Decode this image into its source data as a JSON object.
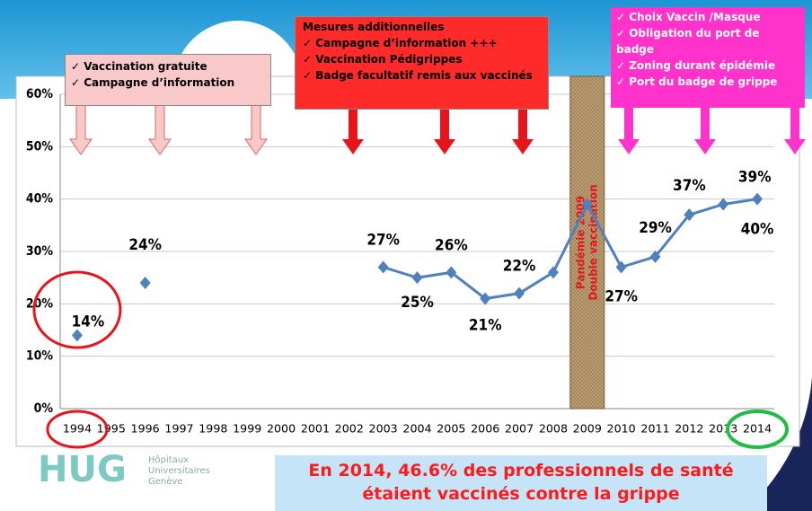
{
  "chart_data": {
    "type": "line",
    "categories": [
      "1994",
      "1995",
      "1996",
      "1997",
      "1998",
      "1999",
      "2000",
      "2001",
      "2002",
      "2003",
      "2004",
      "2005",
      "2006",
      "2007",
      "2008",
      "2009",
      "2010",
      "2011",
      "2012",
      "2013",
      "2014"
    ],
    "series": [
      {
        "color": "#4f81bd",
        "values": [
          14,
          null,
          24,
          null,
          null,
          null,
          null,
          null,
          null,
          27,
          25,
          26,
          21,
          22,
          26,
          39,
          27,
          29,
          37,
          39,
          40
        ],
        "value_labels": [
          "14%",
          null,
          "24%",
          null,
          null,
          null,
          null,
          null,
          null,
          "27%",
          "25%",
          "26%",
          "21%",
          "22%",
          null,
          null,
          "27%",
          "29%",
          "37%",
          "39%",
          "40%"
        ]
      }
    ],
    "ylim": [
      0,
      60
    ],
    "yticks": [
      {
        "value": 0,
        "label": "0%"
      },
      {
        "value": 10,
        "label": "10%"
      },
      {
        "value": 20,
        "label": "20%"
      },
      {
        "value": 30,
        "label": "30%"
      },
      {
        "value": 40,
        "label": "40%"
      },
      {
        "value": 50,
        "label": "50%"
      },
      {
        "value": 60,
        "label": "60%"
      }
    ],
    "grid": true,
    "annotations": {
      "period_1": {
        "items": [
          "Vaccination gratuite",
          "Campagne d’information"
        ]
      },
      "period_2": {
        "title": "Mesures additionnelles",
        "items": [
          "Campagne d’information +++",
          "Vaccination Pédigrippes",
          "Badge facultatif remis aux vaccinés"
        ]
      },
      "period_3": {
        "items": [
          "Choix Vaccin /Masque",
          "Obligation du port de badge",
          "Zoning durant épidémie",
          "Port du badge de grippe"
        ]
      },
      "pandemic": [
        "Pandémie 2009",
        "Double vaccination"
      ]
    }
  },
  "slide": {
    "banner": [
      "En 2014, 46.6% des professionnels de santé",
      "étaient vaccinés contre la grippe"
    ],
    "logo": {
      "abbr": "HUG",
      "name": [
        "Hôpitaux",
        "Universitaires",
        "Genève"
      ]
    }
  }
}
